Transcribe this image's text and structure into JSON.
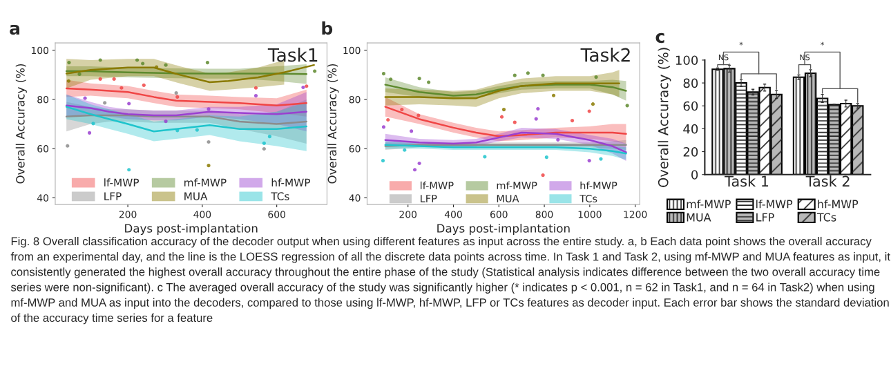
{
  "chart_data": [
    {
      "type": "line",
      "title": "a",
      "xlabel": "Days post-implantation",
      "ylabel": "Overall Accuracy (%)",
      "xlim": [
        5,
        735
      ],
      "ylim": [
        37.3,
        103
      ],
      "xticks": [
        200,
        400,
        600
      ],
      "yticks": [
        40,
        60,
        80,
        100
      ],
      "legend": "bottom",
      "annotations": [
        "Task1"
      ],
      "series": [
        {
          "type": "line",
          "name": "lf-MWP",
          "color": "#f04545",
          "x": [
            35,
            100,
            150,
            200,
            270,
            330,
            420,
            500,
            600,
            680
          ],
          "values": [
            84.5,
            84,
            83.5,
            83,
            81,
            79.5,
            79,
            78.5,
            77.5,
            78.5
          ],
          "lower": [
            81,
            81.5,
            81,
            80.5,
            78.5,
            77,
            76.5,
            76,
            74.5,
            73
          ],
          "upper": [
            88,
            86.5,
            86,
            85.5,
            83.5,
            82,
            81.5,
            81,
            80.5,
            84
          ]
        },
        {
          "type": "line",
          "name": "LFP",
          "color": "#8c8c8c",
          "x": [
            35,
            100,
            150,
            200,
            270,
            330,
            420,
            500,
            600,
            680
          ],
          "values": [
            73,
            73.5,
            73.5,
            73.5,
            73,
            73,
            73,
            71,
            70,
            71
          ],
          "lower": [
            67,
            70,
            71,
            71,
            70.5,
            70.5,
            70.5,
            68,
            65,
            62
          ],
          "upper": [
            79,
            77,
            76,
            76,
            75.5,
            75.5,
            75.5,
            74,
            75,
            80
          ]
        },
        {
          "type": "line",
          "name": "mf-MWP",
          "color": "#5e8a2e",
          "x": [
            35,
            100,
            150,
            200,
            270,
            330,
            420,
            500,
            600,
            680
          ],
          "values": [
            91.5,
            91.5,
            91.2,
            91,
            90.8,
            90.6,
            90.5,
            90.5,
            90.5,
            90.3
          ],
          "lower": [
            89.5,
            89.5,
            89.2,
            89,
            88.8,
            88.6,
            88.5,
            88.5,
            87.5,
            86.3
          ],
          "upper": [
            93.5,
            93.5,
            93.2,
            93,
            92.8,
            92.6,
            92.5,
            92.5,
            93.5,
            94.3
          ]
        },
        {
          "type": "line",
          "name": "MUA",
          "color": "#8a7a00",
          "x": [
            35,
            100,
            200,
            270,
            340,
            420,
            470,
            550,
            620,
            700
          ],
          "values": [
            90.5,
            92,
            93,
            93,
            90,
            87,
            87.5,
            89,
            91,
            94
          ],
          "lower": [
            84.5,
            88,
            89.5,
            89.5,
            86.5,
            83.5,
            84,
            85,
            86,
            null
          ],
          "upper": [
            96.5,
            96,
            96.5,
            96.5,
            93.5,
            90.5,
            91,
            93,
            96,
            null
          ]
        },
        {
          "type": "line",
          "name": "hf-MWP",
          "color": "#9a40d0",
          "x": [
            35,
            100,
            150,
            200,
            270,
            330,
            420,
            500,
            600,
            680
          ],
          "values": [
            77.5,
            76.5,
            75,
            74,
            73.5,
            73.5,
            75,
            74.5,
            74,
            75
          ],
          "lower": [
            73,
            74,
            73,
            72,
            71.5,
            71.5,
            73,
            72,
            70,
            67
          ],
          "upper": [
            82,
            79,
            77,
            76,
            75.5,
            75.5,
            77,
            77,
            78,
            83
          ]
        },
        {
          "type": "line",
          "name": "TCs",
          "color": "#1fc4cc",
          "x": [
            35,
            100,
            150,
            200,
            270,
            330,
            420,
            500,
            600,
            680
          ],
          "values": [
            77,
            74,
            72,
            70,
            67,
            68,
            69.5,
            68,
            68,
            69
          ],
          "lower": [
            72,
            70,
            68,
            66,
            63,
            64,
            65.5,
            63,
            61,
            59
          ],
          "upper": [
            82,
            78,
            76,
            74,
            71,
            72,
            73.5,
            73,
            75,
            79
          ]
        },
        {
          "type": "scatter",
          "marker": "circle",
          "color": "#f04545",
          "x": [
            126,
            163,
            183,
            243,
            333,
            544,
            680
          ],
          "values": [
            88.3,
            88.3,
            84.7,
            85.8,
            81,
            84.7,
            85.4
          ]
        },
        {
          "type": "scatter",
          "marker": "circle",
          "color": "#8c8c8c",
          "x": [
            38,
            138,
            330,
            417,
            566
          ],
          "values": [
            61.1,
            78.6,
            82.6,
            62.7,
            59.9
          ]
        },
        {
          "type": "scatter",
          "marker": "circle",
          "color": "#5e8a2e",
          "x": [
            42,
            70,
            126,
            225,
            240,
            302,
            414,
            702
          ],
          "values": [
            95,
            90.3,
            96,
            96,
            94.6,
            94,
            95,
            91.5
          ]
        },
        {
          "type": "scatter",
          "marker": "circle",
          "color": "#8a7a00",
          "x": [
            41,
            277,
            417
          ],
          "values": [
            87.5,
            93.2,
            53.1
          ]
        },
        {
          "type": "scatter",
          "marker": "circle",
          "color": "#9a40d0",
          "x": [
            85,
            97,
            203,
            302,
            417,
            544,
            671
          ],
          "values": [
            80.5,
            66.4,
            78.3,
            71.1,
            76.1,
            81.5,
            84.9
          ]
        },
        {
          "type": "scatter",
          "marker": "circle",
          "color": "#1fc4cc",
          "x": [
            107,
            203,
            333,
            386,
            566,
            581
          ],
          "values": [
            70.2,
            51.4,
            67.4,
            67.6,
            62.2,
            64.9
          ]
        }
      ]
    },
    {
      "type": "line",
      "title": "b",
      "xlabel": "Days post-implantation",
      "ylabel": "Overall Accuracy (%)",
      "xlim": [
        20,
        1220
      ],
      "ylim": [
        37.3,
        103
      ],
      "xticks": [
        200,
        400,
        600,
        800,
        1000,
        1200
      ],
      "yticks": [
        40,
        60,
        80,
        100
      ],
      "legend": "bottom",
      "annotations": [
        "Task2"
      ],
      "series": [
        {
          "type": "line",
          "name": "lf-MWP",
          "color": "#f04545",
          "x": [
            100,
            250,
            400,
            500,
            600,
            700,
            850,
            1000,
            1100,
            1160
          ],
          "values": [
            77,
            72,
            68.5,
            66.5,
            65,
            65.5,
            66.5,
            66.5,
            66.5,
            66
          ],
          "lower": [
            73,
            70,
            66.5,
            64.5,
            63,
            63.5,
            64.5,
            64,
            63,
            62
          ],
          "upper": [
            81,
            74,
            70.5,
            68.5,
            67,
            67.5,
            68.5,
            69,
            70,
            70
          ]
        },
        {
          "type": "line",
          "name": "LFP",
          "color": "#8c8c8c",
          "x": [
            100,
            250,
            400,
            500,
            600,
            700,
            850,
            1000,
            1100,
            1160
          ],
          "values": [
            61,
            61.5,
            61.5,
            61.5,
            61.5,
            61.5,
            61.5,
            61.5,
            61.5,
            61.5
          ],
          "lower": [
            59.5,
            60.5,
            60.5,
            60.5,
            60.5,
            60.5,
            60.5,
            60.5,
            60,
            59.5
          ],
          "upper": [
            62.5,
            62.5,
            62.5,
            62.5,
            62.5,
            62.5,
            62.5,
            62.5,
            63,
            63.5
          ]
        },
        {
          "type": "line",
          "name": "mf-MWP",
          "color": "#5e8a2e",
          "x": [
            100,
            250,
            400,
            500,
            600,
            700,
            850,
            1000,
            1100,
            1160
          ],
          "values": [
            86,
            83,
            81.5,
            82,
            84,
            85.5,
            86,
            86,
            85,
            83.5
          ],
          "lower": [
            83,
            81,
            80,
            80.5,
            82.5,
            84,
            84.5,
            84.5,
            82,
            79.5
          ],
          "upper": [
            89,
            85,
            83,
            83.5,
            85.5,
            87,
            87.5,
            87.5,
            88,
            87.5
          ]
        },
        {
          "type": "line",
          "name": "MUA",
          "color": "#8a7a00",
          "x": [
            100,
            250,
            400,
            500,
            600,
            700,
            850,
            1000,
            1100,
            1130
          ],
          "values": [
            81,
            81,
            80.5,
            80.5,
            83.5,
            85.5,
            86.5,
            86.5,
            86.5,
            86.5
          ],
          "lower": [
            77.5,
            78,
            77.5,
            77,
            80.5,
            82.5,
            83.5,
            83.5,
            82,
            81
          ],
          "upper": [
            84.5,
            84,
            83.5,
            84,
            86.5,
            88.5,
            89.5,
            89.5,
            91,
            92
          ]
        },
        {
          "type": "line",
          "name": "hf-MWP",
          "color": "#9a40d0",
          "x": [
            100,
            250,
            400,
            500,
            600,
            700,
            850,
            1000,
            1100,
            1160
          ],
          "values": [
            63.5,
            62.5,
            62,
            62.5,
            64.5,
            66.5,
            66,
            63.5,
            61,
            58.5
          ],
          "lower": [
            61,
            61,
            60.5,
            61,
            63,
            64.5,
            64,
            61.5,
            58,
            55
          ],
          "upper": [
            66,
            64,
            63.5,
            64,
            66,
            68.5,
            68,
            65.5,
            64,
            62
          ]
        },
        {
          "type": "line",
          "name": "TCs",
          "color": "#1fc4cc",
          "x": [
            100,
            250,
            400,
            500,
            600,
            700,
            850,
            1000,
            1100,
            1160
          ],
          "values": [
            61.5,
            61,
            60.5,
            60.5,
            60.5,
            60.5,
            60.5,
            60,
            59,
            58
          ],
          "lower": [
            60,
            60,
            59.5,
            59.5,
            59.5,
            59.5,
            59.5,
            58.5,
            57,
            55.5
          ],
          "upper": [
            63,
            62,
            61.5,
            61.5,
            61.5,
            61.5,
            61.5,
            61.5,
            61,
            60.5
          ]
        },
        {
          "type": "scatter",
          "marker": "circle",
          "color": "#f04545",
          "x": [
            112,
            173,
            246,
            613,
            670,
            794,
            923,
            998
          ],
          "values": [
            71.7,
            75.9,
            73.5,
            72.9,
            70.7,
            49.2,
            71.4,
            75.2
          ]
        },
        {
          "type": "scatter",
          "marker": "circle",
          "color": "#5e8a2e",
          "x": [
            93,
            124,
            250,
            291,
            670,
            728,
            794,
            1028,
            1165
          ],
          "values": [
            90.5,
            88.2,
            88.5,
            87,
            89.8,
            90.7,
            89.8,
            89.1,
            77.5
          ]
        },
        {
          "type": "scatter",
          "marker": "circle",
          "color": "#8a7a00",
          "x": [
            622,
            841,
            1014
          ],
          "values": [
            75.9,
            81.6,
            78.1
          ]
        },
        {
          "type": "scatter",
          "marker": "circle",
          "color": "#9a40d0",
          "x": [
            93,
            215,
            230,
            250,
            764,
            772,
            860,
            998
          ],
          "values": [
            68.8,
            67.1,
            51.4,
            54,
            72.1,
            76.2,
            63.6,
            55.1
          ]
        },
        {
          "type": "scatter",
          "marker": "circle",
          "color": "#1fc4cc",
          "x": [
            90,
            185,
            538,
            810,
            1049
          ],
          "values": [
            55.1,
            59.4,
            56.7,
            56.5,
            55.8
          ]
        }
      ]
    },
    {
      "type": "bar",
      "title": "c",
      "ylabel": "Overall Accuracy (%)",
      "categories": [
        "Task 1",
        "Task 2"
      ],
      "ylim": [
        0,
        100
      ],
      "yticks": [
        0,
        20,
        40,
        60,
        80,
        100
      ],
      "legend": "bottom",
      "series": [
        {
          "name": "mf-MWP",
          "color": "#ffffff",
          "values": [
            92,
            85
          ],
          "errors": [
            1,
            2
          ]
        },
        {
          "name": "MUA",
          "color": "#b8b8b8",
          "values": [
            92.5,
            88.5
          ],
          "errors": [
            3,
            3
          ]
        },
        {
          "name": "lf-MWP",
          "color": "#ffffff",
          "values": [
            80,
            66.5
          ],
          "errors": [
            3,
            3.5
          ]
        },
        {
          "name": "LFP",
          "color": "#b8b8b8",
          "values": [
            72,
            61
          ],
          "errors": [
            2.5,
            0.5
          ]
        },
        {
          "name": "hf-MWP",
          "color": "#ffffff",
          "values": [
            76,
            62
          ],
          "errors": [
            3,
            3
          ]
        },
        {
          "name": "TCs",
          "color": "#b8b8b8",
          "values": [
            70,
            60
          ],
          "errors": [
            3.5,
            2
          ]
        }
      ],
      "annotations": [
        "NS",
        "*",
        "NS",
        "*",
        "Fig. 8 Overall classification accuracy of the decoder output when using different features as input across the entire study. a, b Each data point shows the overall accuracy from an experimental day, and the line is the LOESS regression of all the discrete data points across time. In Task 1 and Task 2, using mf-MWP and MUA features as input, it consistently generated the highest overall accuracy throughout the entire phase of the study (Statistical analysis indicates difference between the two overall accuracy time series were non-significant). c The averaged overall accuracy of the study was significantly higher (* indicates p < 0.001, n = 62 in Task1, and n = 64 in Task2) when using mf-MWP and MUA as input into the decoders, compared to those using lf-MWP, hf-MWP, LFP or TCs features as decoder input. Each error bar shows the standard deviation of the accuracy time series for a feature"
      ]
    }
  ]
}
